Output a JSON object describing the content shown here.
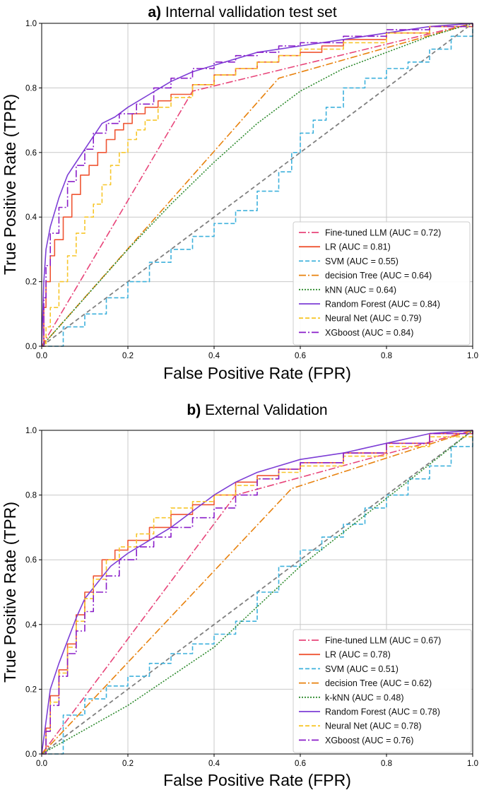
{
  "chart_data": [
    {
      "type": "line",
      "title_prefix": "a)",
      "title": "Internal vallidation test set",
      "xlabel": "False Positive Rate (FPR)",
      "ylabel": "True Positive Rate (TPR)",
      "xlim": [
        0,
        1
      ],
      "ylim": [
        0,
        1
      ],
      "xticks": [
        "0.0",
        "0.2",
        "0.4",
        "0.6",
        "0.8",
        "1.0"
      ],
      "yticks": [
        "0.0",
        "0.2",
        "0.4",
        "0.6",
        "0.8",
        "1.0"
      ],
      "grid": true,
      "legend_position": "bottom-right",
      "diagonal": {
        "color": "#808080",
        "dash": "6,4"
      },
      "series": [
        {
          "name": "Fine-tuned LLM (AUC = 0.72)",
          "color": "#e8457a",
          "dash": "10,3,2,3",
          "step": false,
          "x": [
            0,
            0.35,
            1
          ],
          "y": [
            0,
            0.79,
            1
          ]
        },
        {
          "name": "LR (AUC = 0.81)",
          "color": "#ef5533",
          "dash": "",
          "step": true,
          "x": [
            0,
            0.005,
            0.01,
            0.02,
            0.03,
            0.05,
            0.07,
            0.09,
            0.11,
            0.13,
            0.15,
            0.17,
            0.19,
            0.21,
            0.24,
            0.27,
            0.3,
            0.35,
            0.4,
            0.45,
            0.5,
            0.55,
            0.6,
            0.65,
            0.7,
            0.8,
            0.9,
            1.0
          ],
          "y": [
            0,
            0.12,
            0.2,
            0.28,
            0.33,
            0.4,
            0.47,
            0.53,
            0.56,
            0.6,
            0.64,
            0.67,
            0.69,
            0.72,
            0.74,
            0.76,
            0.78,
            0.81,
            0.84,
            0.86,
            0.88,
            0.9,
            0.91,
            0.93,
            0.95,
            0.97,
            0.99,
            1.0
          ]
        },
        {
          "name": "SVM (AUC = 0.55)",
          "color": "#3eb1dc",
          "dash": "6,3",
          "step": true,
          "x": [
            0,
            0.05,
            0.1,
            0.15,
            0.2,
            0.25,
            0.3,
            0.35,
            0.4,
            0.45,
            0.5,
            0.55,
            0.58,
            0.6,
            0.63,
            0.66,
            0.7,
            0.75,
            0.8,
            0.85,
            0.9,
            0.95,
            1.0
          ],
          "y": [
            0,
            0.06,
            0.1,
            0.15,
            0.2,
            0.26,
            0.3,
            0.34,
            0.38,
            0.42,
            0.48,
            0.54,
            0.6,
            0.66,
            0.7,
            0.74,
            0.8,
            0.83,
            0.86,
            0.88,
            0.92,
            0.96,
            1.0
          ]
        },
        {
          "name": "decision Tree (AUC = 0.64)",
          "color": "#e8820e",
          "dash": "10,3,2,3",
          "step": false,
          "x": [
            0,
            0.55,
            1
          ],
          "y": [
            0,
            0.83,
            1
          ]
        },
        {
          "name": "kNN (AUC = 0.64)",
          "color": "#2e8b2e",
          "dash": "2,2",
          "step": false,
          "x": [
            0,
            0.1,
            0.2,
            0.3,
            0.4,
            0.5,
            0.6,
            0.7,
            0.8,
            0.9,
            1.0
          ],
          "y": [
            0,
            0.15,
            0.3,
            0.44,
            0.57,
            0.69,
            0.79,
            0.86,
            0.91,
            0.96,
            1.0
          ]
        },
        {
          "name": "Random Forest (AUC = 0.84)",
          "color": "#7d3ed6",
          "dash": "",
          "step": false,
          "x": [
            0,
            0.005,
            0.01,
            0.02,
            0.04,
            0.06,
            0.08,
            0.1,
            0.12,
            0.14,
            0.17,
            0.2,
            0.25,
            0.3,
            0.35,
            0.4,
            0.45,
            0.5,
            0.55,
            0.6,
            0.7,
            0.8,
            0.9,
            1.0
          ],
          "y": [
            0,
            0.2,
            0.3,
            0.37,
            0.46,
            0.53,
            0.57,
            0.61,
            0.65,
            0.69,
            0.71,
            0.74,
            0.78,
            0.82,
            0.85,
            0.87,
            0.89,
            0.91,
            0.92,
            0.93,
            0.95,
            0.97,
            0.99,
            1.0
          ]
        },
        {
          "name": "Neural Net (AUC = 0.79)",
          "color": "#f7c62a",
          "dash": "6,3",
          "step": true,
          "x": [
            0,
            0.01,
            0.02,
            0.04,
            0.06,
            0.08,
            0.1,
            0.12,
            0.14,
            0.16,
            0.18,
            0.2,
            0.22,
            0.24,
            0.27,
            0.3,
            0.35,
            0.4,
            0.45,
            0.5,
            0.55,
            0.6,
            0.7,
            0.8,
            0.9,
            1.0
          ],
          "y": [
            0,
            0.06,
            0.12,
            0.2,
            0.28,
            0.35,
            0.4,
            0.44,
            0.5,
            0.56,
            0.6,
            0.64,
            0.67,
            0.7,
            0.74,
            0.77,
            0.81,
            0.84,
            0.86,
            0.88,
            0.9,
            0.92,
            0.94,
            0.97,
            0.99,
            1.0
          ]
        },
        {
          "name": "XGboost (AUC = 0.84)",
          "color": "#8a1ec9",
          "dash": "10,3,2,3",
          "step": true,
          "x": [
            0,
            0.005,
            0.01,
            0.02,
            0.04,
            0.06,
            0.08,
            0.1,
            0.12,
            0.15,
            0.18,
            0.22,
            0.26,
            0.3,
            0.35,
            0.4,
            0.45,
            0.5,
            0.55,
            0.6,
            0.7,
            0.8,
            0.9,
            1.0
          ],
          "y": [
            0,
            0.15,
            0.25,
            0.35,
            0.43,
            0.51,
            0.56,
            0.61,
            0.66,
            0.69,
            0.72,
            0.75,
            0.8,
            0.83,
            0.86,
            0.88,
            0.9,
            0.91,
            0.93,
            0.94,
            0.96,
            0.98,
            0.99,
            1.0
          ]
        }
      ]
    },
    {
      "type": "line",
      "title_prefix": "b)",
      "title": "External Validation",
      "xlabel": "False Positive Rate (FPR)",
      "ylabel": "True Positive Rate (TPR)",
      "xlim": [
        0,
        1
      ],
      "ylim": [
        0,
        1
      ],
      "xticks": [
        "0.0",
        "0.2",
        "0.4",
        "0.6",
        "0.8",
        "1.0"
      ],
      "yticks": [
        "0.0",
        "0.2",
        "0.4",
        "0.6",
        "0.8",
        "1.0"
      ],
      "grid": true,
      "legend_position": "bottom-right",
      "diagonal": {
        "color": "#808080",
        "dash": "6,4"
      },
      "series": [
        {
          "name": "Fine-tuned LLM (AUC = 0.67)",
          "color": "#e8457a",
          "dash": "10,3,2,3",
          "step": false,
          "x": [
            0,
            0.45,
            1
          ],
          "y": [
            0,
            0.8,
            1
          ]
        },
        {
          "name": "LR (AUC = 0.78)",
          "color": "#ef5533",
          "dash": "",
          "step": true,
          "x": [
            0,
            0.01,
            0.02,
            0.04,
            0.06,
            0.08,
            0.1,
            0.12,
            0.14,
            0.17,
            0.2,
            0.25,
            0.3,
            0.35,
            0.4,
            0.45,
            0.5,
            0.55,
            0.6,
            0.7,
            0.8,
            0.9,
            1.0
          ],
          "y": [
            0,
            0.08,
            0.18,
            0.26,
            0.34,
            0.43,
            0.5,
            0.55,
            0.6,
            0.63,
            0.66,
            0.7,
            0.74,
            0.77,
            0.8,
            0.84,
            0.86,
            0.88,
            0.9,
            0.93,
            0.96,
            0.99,
            1.0
          ]
        },
        {
          "name": "SVM (AUC = 0.51)",
          "color": "#3eb1dc",
          "dash": "6,3",
          "step": true,
          "x": [
            0,
            0.05,
            0.1,
            0.15,
            0.2,
            0.25,
            0.3,
            0.35,
            0.4,
            0.45,
            0.5,
            0.55,
            0.6,
            0.65,
            0.7,
            0.75,
            0.8,
            0.85,
            0.9,
            0.95,
            1.0
          ],
          "y": [
            0,
            0.12,
            0.17,
            0.21,
            0.24,
            0.28,
            0.31,
            0.34,
            0.37,
            0.41,
            0.5,
            0.58,
            0.63,
            0.67,
            0.71,
            0.76,
            0.8,
            0.85,
            0.89,
            0.95,
            1.0
          ]
        },
        {
          "name": "decision Tree (AUC = 0.62)",
          "color": "#e8820e",
          "dash": "10,3,2,3",
          "step": false,
          "x": [
            0,
            0.58,
            1
          ],
          "y": [
            0,
            0.82,
            1
          ]
        },
        {
          "name": "k-kNN (AUC = 0.48)",
          "color": "#2e8b2e",
          "dash": "2,2",
          "step": false,
          "x": [
            0,
            0.2,
            0.4,
            0.6,
            0.8,
            1.0
          ],
          "y": [
            0,
            0.15,
            0.33,
            0.58,
            0.79,
            1.0
          ]
        },
        {
          "name": "Random Forest (AUC = 0.78)",
          "color": "#7d3ed6",
          "dash": "",
          "step": false,
          "x": [
            0,
            0.01,
            0.02,
            0.04,
            0.06,
            0.08,
            0.1,
            0.13,
            0.16,
            0.2,
            0.25,
            0.3,
            0.35,
            0.4,
            0.45,
            0.5,
            0.55,
            0.6,
            0.7,
            0.8,
            0.9,
            1.0
          ],
          "y": [
            0,
            0.1,
            0.2,
            0.28,
            0.35,
            0.42,
            0.48,
            0.53,
            0.58,
            0.62,
            0.66,
            0.7,
            0.75,
            0.8,
            0.84,
            0.87,
            0.89,
            0.91,
            0.93,
            0.96,
            0.99,
            1.0
          ]
        },
        {
          "name": "Neural Net (AUC = 0.78)",
          "color": "#f7c62a",
          "dash": "6,3",
          "step": true,
          "x": [
            0,
            0.01,
            0.02,
            0.04,
            0.06,
            0.08,
            0.1,
            0.12,
            0.15,
            0.18,
            0.22,
            0.26,
            0.3,
            0.35,
            0.4,
            0.45,
            0.5,
            0.55,
            0.6,
            0.7,
            0.8,
            0.9,
            1.0
          ],
          "y": [
            0,
            0.07,
            0.16,
            0.25,
            0.33,
            0.41,
            0.48,
            0.54,
            0.6,
            0.64,
            0.68,
            0.73,
            0.76,
            0.78,
            0.8,
            0.83,
            0.85,
            0.87,
            0.89,
            0.92,
            0.95,
            0.98,
            1.0
          ]
        },
        {
          "name": "XGboost (AUC = 0.76)",
          "color": "#8a1ec9",
          "dash": "10,3,2,3",
          "step": true,
          "x": [
            0,
            0.01,
            0.02,
            0.04,
            0.06,
            0.08,
            0.1,
            0.12,
            0.15,
            0.18,
            0.22,
            0.26,
            0.3,
            0.35,
            0.4,
            0.45,
            0.5,
            0.55,
            0.6,
            0.7,
            0.8,
            0.9,
            1.0
          ],
          "y": [
            0,
            0.07,
            0.15,
            0.24,
            0.31,
            0.38,
            0.44,
            0.5,
            0.55,
            0.6,
            0.64,
            0.67,
            0.7,
            0.73,
            0.76,
            0.8,
            0.85,
            0.88,
            0.9,
            0.93,
            0.96,
            0.99,
            1.0
          ]
        }
      ]
    }
  ]
}
